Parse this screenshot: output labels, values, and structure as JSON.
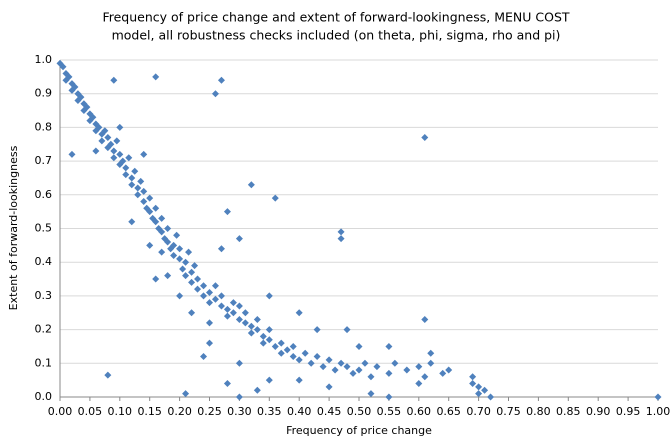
{
  "chart_data": {
    "type": "scatter",
    "title": "Frequency of price change and extent of forward-lookingness, MENU COST",
    "subtitle": "model, all robustness checks included (on theta, phi, sigma, rho and pi)",
    "x_label": "Frequency of price change",
    "y_label": "Extent of forward-lookingness",
    "color": "#4f81bd",
    "grid": true,
    "xlim": [
      0,
      1
    ],
    "ylim": [
      0,
      1
    ],
    "xticks": [
      {
        "value": 0,
        "label": "0.00"
      },
      {
        "value": 0.05,
        "label": "0.05"
      },
      {
        "value": 0.1,
        "label": "0.10"
      },
      {
        "value": 0.15,
        "label": "0.15"
      },
      {
        "value": 0.2,
        "label": "0.20"
      },
      {
        "value": 0.25,
        "label": "0.25"
      },
      {
        "value": 0.3,
        "label": "0.30"
      },
      {
        "value": 0.35,
        "label": "0.35"
      },
      {
        "value": 0.4,
        "label": "0.40"
      },
      {
        "value": 0.45,
        "label": "0.45"
      },
      {
        "value": 0.5,
        "label": "0.50"
      },
      {
        "value": 0.55,
        "label": "0.55"
      },
      {
        "value": 0.6,
        "label": "0.60"
      },
      {
        "value": 0.65,
        "label": "0.65"
      },
      {
        "value": 0.7,
        "label": "0.70"
      },
      {
        "value": 0.75,
        "label": "0.75"
      },
      {
        "value": 0.8,
        "label": "0.80"
      },
      {
        "value": 0.85,
        "label": "0.85"
      },
      {
        "value": 0.9,
        "label": "0.90"
      },
      {
        "value": 0.95,
        "label": "0.95"
      },
      {
        "value": 1,
        "label": "1.00"
      }
    ],
    "yticks": [
      {
        "value": 0,
        "label": "0.0"
      },
      {
        "value": 0.1,
        "label": "0.1"
      },
      {
        "value": 0.2,
        "label": "0.2"
      },
      {
        "value": 0.3,
        "label": "0.3"
      },
      {
        "value": 0.4,
        "label": "0.4"
      },
      {
        "value": 0.5,
        "label": "0.5"
      },
      {
        "value": 0.6,
        "label": "0.6"
      },
      {
        "value": 0.7,
        "label": "0.7"
      },
      {
        "value": 0.8,
        "label": "0.8"
      },
      {
        "value": 0.9,
        "label": "0.9"
      },
      {
        "value": 1,
        "label": "1.0"
      }
    ],
    "x": [
      0,
      0.005,
      0.01,
      0.01,
      0.015,
      0.02,
      0.02,
      0.025,
      0.03,
      0.03,
      0.035,
      0.04,
      0.04,
      0.045,
      0.05,
      0.05,
      0.055,
      0.06,
      0.06,
      0.065,
      0.07,
      0.07,
      0.075,
      0.08,
      0.08,
      0.085,
      0.09,
      0.09,
      0.095,
      0.1,
      0.1,
      0.105,
      0.11,
      0.11,
      0.115,
      0.12,
      0.12,
      0.125,
      0.13,
      0.13,
      0.135,
      0.14,
      0.14,
      0.145,
      0.15,
      0.15,
      0.155,
      0.16,
      0.16,
      0.165,
      0.17,
      0.17,
      0.175,
      0.18,
      0.18,
      0.185,
      0.19,
      0.19,
      0.195,
      0.2,
      0.2,
      0.205,
      0.21,
      0.21,
      0.215,
      0.22,
      0.22,
      0.225,
      0.23,
      0.23,
      0.24,
      0.24,
      0.25,
      0.25,
      0.26,
      0.26,
      0.27,
      0.27,
      0.28,
      0.28,
      0.29,
      0.29,
      0.3,
      0.3,
      0.31,
      0.31,
      0.32,
      0.32,
      0.33,
      0.33,
      0.34,
      0.34,
      0.35,
      0.35,
      0.36,
      0.37,
      0.37,
      0.38,
      0.39,
      0.39,
      0.4,
      0.41,
      0.42,
      0.43,
      0.44,
      0.45,
      0.46,
      0.47,
      0.48,
      0.49,
      0.5,
      0.51,
      0.52,
      0.53,
      0.55,
      0.56,
      0.58,
      0.6,
      0.61,
      0.62,
      0.64,
      0.65,
      0.69,
      0.7,
      0.71,
      0.7,
      0.69,
      0.72,
      0.12,
      0.15,
      0.2,
      0.18,
      0.22,
      0.25,
      0.27,
      0.3,
      0.32,
      0.28,
      0.35,
      0.4,
      0.43,
      0.5,
      0.48,
      0.55,
      0.14,
      0.1,
      0.16,
      0.24,
      0.3,
      0.35,
      0.45,
      0.52,
      0.62,
      0.09,
      0.16,
      0.27,
      0.26,
      0.61,
      0.08,
      0.02,
      0.06,
      1,
      0.21,
      0.3,
      0.28,
      0.36,
      0.47,
      0.47,
      0.61,
      0.55,
      0.6,
      0.25,
      0.17,
      0.4,
      0.33
    ],
    "values": [
      0.99,
      0.98,
      0.96,
      0.94,
      0.95,
      0.93,
      0.91,
      0.92,
      0.9,
      0.88,
      0.89,
      0.87,
      0.85,
      0.86,
      0.84,
      0.82,
      0.83,
      0.81,
      0.79,
      0.8,
      0.78,
      0.76,
      0.79,
      0.77,
      0.74,
      0.75,
      0.73,
      0.71,
      0.76,
      0.72,
      0.69,
      0.7,
      0.68,
      0.66,
      0.71,
      0.65,
      0.63,
      0.67,
      0.62,
      0.6,
      0.64,
      0.58,
      0.61,
      0.56,
      0.55,
      0.59,
      0.53,
      0.52,
      0.56,
      0.5,
      0.49,
      0.53,
      0.47,
      0.46,
      0.5,
      0.44,
      0.45,
      0.42,
      0.48,
      0.41,
      0.44,
      0.38,
      0.4,
      0.36,
      0.43,
      0.37,
      0.34,
      0.39,
      0.35,
      0.32,
      0.33,
      0.3,
      0.31,
      0.28,
      0.29,
      0.33,
      0.27,
      0.3,
      0.26,
      0.24,
      0.28,
      0.25,
      0.23,
      0.27,
      0.22,
      0.25,
      0.21,
      0.19,
      0.2,
      0.23,
      0.18,
      0.16,
      0.17,
      0.2,
      0.15,
      0.16,
      0.13,
      0.14,
      0.12,
      0.15,
      0.11,
      0.13,
      0.1,
      0.12,
      0.09,
      0.11,
      0.08,
      0.1,
      0.09,
      0.07,
      0.08,
      0.1,
      0.06,
      0.09,
      0.07,
      0.1,
      0.08,
      0.09,
      0.06,
      0.1,
      0.07,
      0.08,
      0.04,
      0.03,
      0.02,
      0.01,
      0.06,
      0,
      0.52,
      0.45,
      0.3,
      0.36,
      0.25,
      0.22,
      0.44,
      0.47,
      0.63,
      0.55,
      0.3,
      0.25,
      0.2,
      0.15,
      0.2,
      0.15,
      0.72,
      0.8,
      0.35,
      0.12,
      0.1,
      0.05,
      0.03,
      0.01,
      0.13,
      0.94,
      0.95,
      0.94,
      0.9,
      0.77,
      0.065,
      0.72,
      0.73,
      0,
      0.01,
      0,
      0.04,
      0.59,
      0.49,
      0.47,
      0.23,
      0,
      0.04,
      0.16,
      0.43,
      0.05,
      0.02
    ]
  }
}
